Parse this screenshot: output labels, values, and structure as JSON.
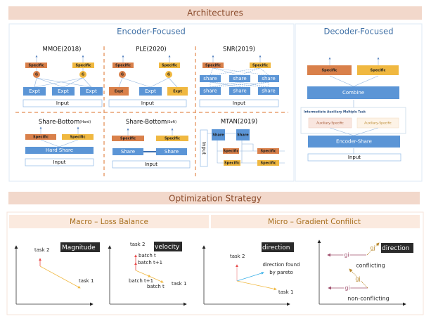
{
  "architectures": {
    "header": "Architectures",
    "encoder": {
      "title": "Encoder-Focused",
      "mmoe": {
        "title": "MMOE(2018)",
        "specific": "Specific",
        "gate": "G",
        "expert": "Expt",
        "input": "Input"
      },
      "ple": {
        "title": "PLE(2020)",
        "specific": "Specific",
        "gate": "G",
        "expert": "Expt",
        "input": "Input"
      },
      "snr": {
        "title": "SNR(2019)",
        "specific": "Specific",
        "share": "share",
        "input": "Input"
      },
      "share_bottom_hard": {
        "title": "Share-Bottom",
        "title_sub": "(Hard)",
        "specific": "Specific",
        "share": "Hard Share",
        "input": "Input"
      },
      "share_bottom_soft": {
        "title": "Share-Bottom",
        "title_sub": "(Soft)",
        "specific": "Specific",
        "share": "Share",
        "input": "Input"
      },
      "mtan": {
        "title": "MTAN(2019)",
        "input": "Input",
        "share": "Share",
        "specific": "Specific"
      }
    },
    "decoder": {
      "title": "Decoder-Focused",
      "specific": "Specific",
      "combine": "Combine",
      "intermediate_label": "Intermediate Auxiliary Multiple Task",
      "auxiliary": "Auxiliary-Specific",
      "encoder_share": "Encoder-Share",
      "input": "Input"
    }
  },
  "optimization": {
    "header": "Optimization Strategy",
    "macro": {
      "title": "Macro – Loss Balance",
      "magnitude": {
        "tag": "Magnitude",
        "task2": "task 2",
        "task1": "task 1"
      },
      "velocity": {
        "tag": "velocity",
        "task2": "task 2",
        "task1": "task 1",
        "batch_t": "batch t",
        "batch_t1": "batch t+1"
      }
    },
    "micro": {
      "title": "Micro – Gradient Confilict",
      "pareto": {
        "tag": "direction",
        "task2": "task 2",
        "task1": "task 1",
        "found1": "direction found",
        "found2": "by pareto"
      },
      "conflict": {
        "tag": "direction",
        "gi": "gi",
        "gj": "gj",
        "conflicting": "conflicting",
        "non_conflicting": "non-conflicting"
      }
    }
  },
  "colors": {
    "orange": "#d9804a",
    "yellow": "#f0b840",
    "blue": "#5b95d6",
    "red": "#e84a4a",
    "purple": "#a0506e",
    "gold": "#b8862a",
    "cyan": "#3ab0e8"
  }
}
